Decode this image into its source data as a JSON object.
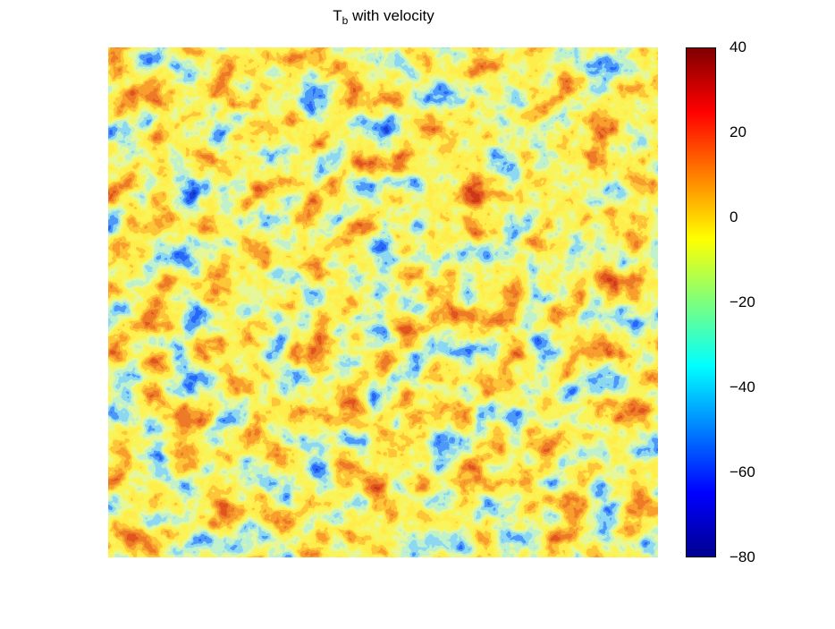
{
  "title_main": "T",
  "title_sub": "b",
  "title_rest": " with velocity",
  "colorbar": {
    "min": -80,
    "max": 40,
    "ticks": [
      "40",
      "20",
      "0",
      "−20",
      "−40",
      "−60",
      "−80"
    ],
    "tick_values": [
      40,
      20,
      0,
      -20,
      -40,
      -60,
      -80
    ],
    "colormap": "jet"
  },
  "chart_data": {
    "type": "heatmap",
    "title": "T_b with velocity",
    "xlabel": "",
    "ylabel": "",
    "value_range": [
      -80,
      40
    ],
    "colormap": "jet",
    "grid": false,
    "colorbar_placement": "right"
  }
}
